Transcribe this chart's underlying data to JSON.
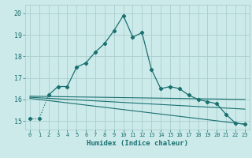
{
  "xlabel": "Humidex (Indice chaleur)",
  "bg_color": "#cdeaea",
  "grid_color": "#aacece",
  "line_color": "#1a7070",
  "xlim": [
    -0.5,
    23.5
  ],
  "ylim": [
    14.6,
    20.4
  ],
  "yticks": [
    15,
    16,
    17,
    18,
    19,
    20
  ],
  "xticks": [
    0,
    1,
    2,
    3,
    4,
    5,
    6,
    7,
    8,
    9,
    10,
    11,
    12,
    13,
    14,
    15,
    16,
    17,
    18,
    19,
    20,
    21,
    22,
    23
  ],
  "series1_x": [
    0,
    1,
    2,
    3,
    4,
    5,
    6,
    7,
    8,
    9,
    10,
    11,
    12,
    13,
    14,
    15,
    16,
    17,
    18,
    19,
    20,
    21,
    22,
    23
  ],
  "series1_y": [
    15.1,
    15.1,
    16.2,
    16.6,
    16.6,
    17.5,
    17.7,
    18.2,
    18.6,
    19.2,
    19.9,
    18.9,
    19.1,
    17.4,
    16.5,
    16.6,
    16.5,
    16.2,
    16.0,
    15.9,
    15.8,
    15.3,
    14.9,
    14.85
  ],
  "series2_x": [
    0,
    23
  ],
  "series2_y": [
    16.15,
    16.0
  ],
  "series3_x": [
    0,
    23
  ],
  "series3_y": [
    16.1,
    15.55
  ],
  "series4_x": [
    0,
    23
  ],
  "series4_y": [
    16.05,
    14.85
  ]
}
